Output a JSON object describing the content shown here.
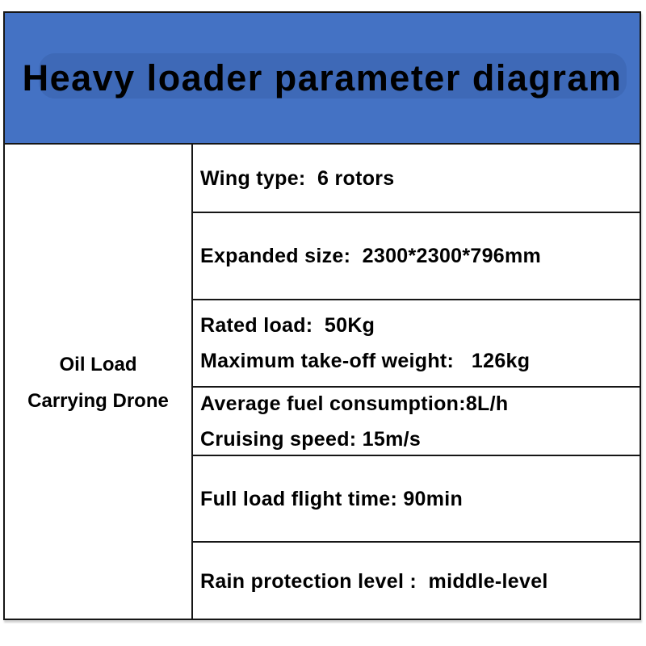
{
  "title": "Heavy loader parameter diagram",
  "product_name": {
    "line1": "Oil Load",
    "line2": "Carrying Drone"
  },
  "specs": {
    "wing_type": "Wing type:  6 rotors",
    "expanded_size": "Expanded size:  2300*2300*796mm",
    "rated_load": "Rated load:  50Kg",
    "max_takeoff_weight": "Maximum take-off weight:   126kg",
    "avg_fuel_consumption": "Average fuel consumption:8L/h",
    "cruising_speed": "Cruising speed: 15m/s",
    "full_load_flight_time": "Full load flight time: 90min",
    "rain_protection_level": "Rain protection level :  middle-level"
  },
  "colors": {
    "banner_blue": "#4472c4",
    "border_black": "#161616",
    "text_black": "#000000",
    "background_white": "#ffffff"
  }
}
